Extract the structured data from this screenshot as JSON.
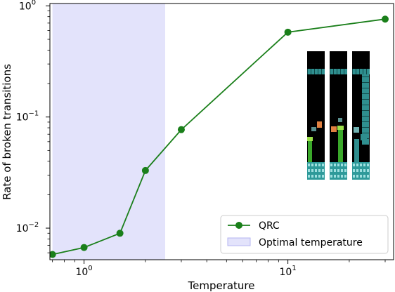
{
  "chart_data": {
    "type": "line",
    "xscale": "log",
    "yscale": "log",
    "xlim": [
      0.68,
      33
    ],
    "ylim": [
      0.0052,
      1.05
    ],
    "xlabel": "Temperature",
    "ylabel": "Rate of broken transitions",
    "x_ticks": [
      {
        "base": "10",
        "exp": "0",
        "value": 1
      },
      {
        "base": "10",
        "exp": "1",
        "value": 10
      }
    ],
    "y_ticks": [
      {
        "base": "10",
        "exp": "−2",
        "value": 0.01
      },
      {
        "base": "10",
        "exp": "−1",
        "value": 0.1
      },
      {
        "base": "10",
        "exp": "0",
        "value": 1
      }
    ],
    "series": [
      {
        "name": "QRC",
        "color": "#1a7f1a",
        "marker": "circle",
        "x": [
          0.7,
          1.0,
          1.5,
          2.0,
          3.0,
          10.0,
          30.0
        ],
        "y": [
          0.0058,
          0.0067,
          0.009,
          0.033,
          0.077,
          0.58,
          0.76
        ]
      }
    ],
    "shaded_region": {
      "name": "Optimal temperature",
      "x": [
        0.7,
        2.5
      ],
      "color": "#e3e3fb",
      "edge": "#b4b4f0"
    },
    "legend": {
      "placement": "lower-right"
    },
    "grid": false,
    "inset": {
      "description": "three game level thumbnails",
      "placement": "right-middle"
    }
  }
}
